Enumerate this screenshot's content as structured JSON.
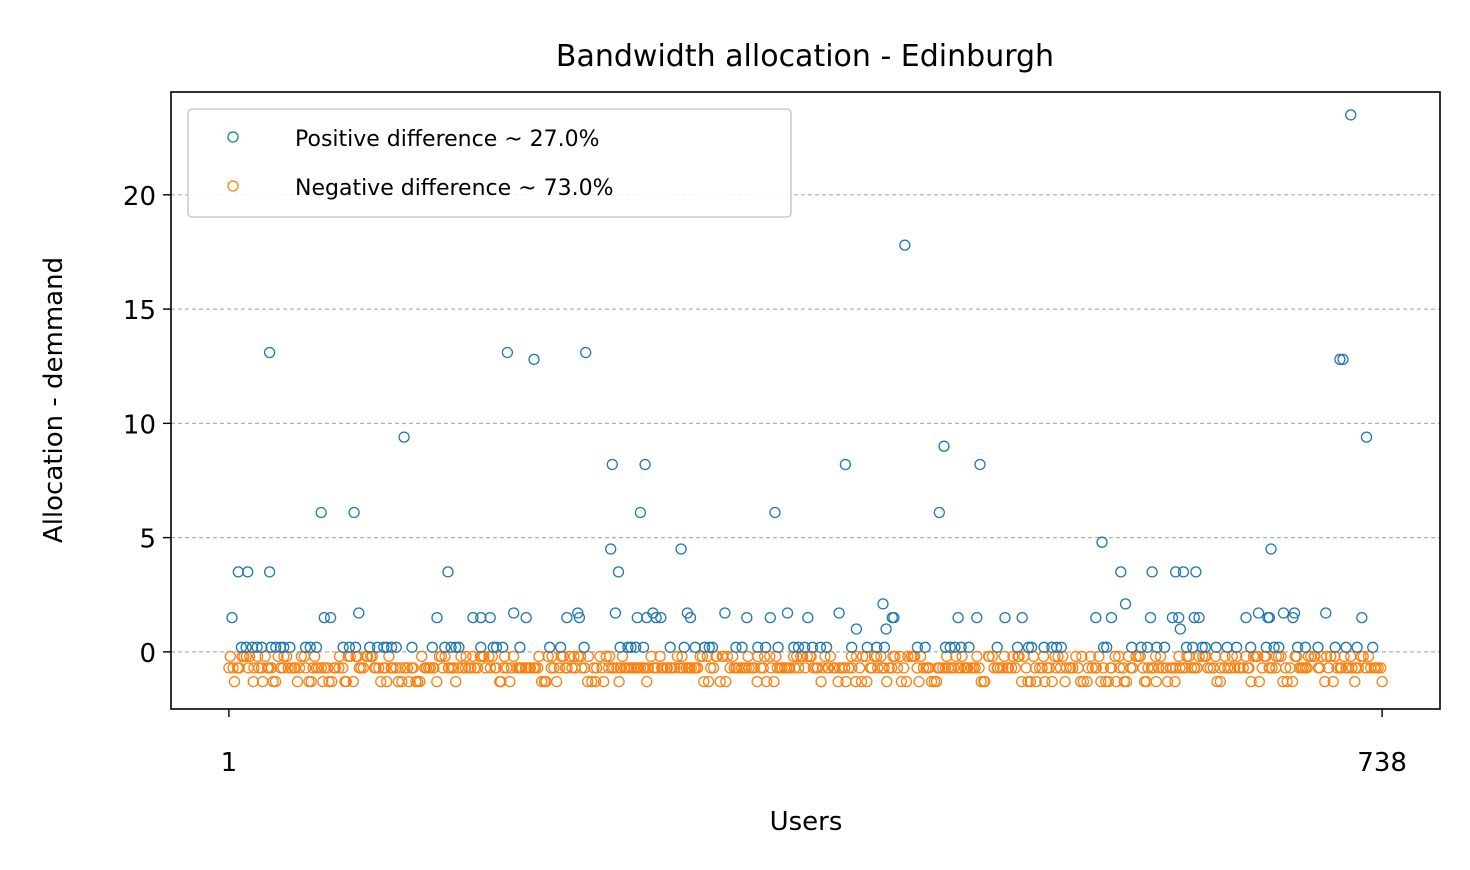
{
  "chart_data": {
    "type": "scatter",
    "title": "Bandwidth allocation - Edinburgh",
    "xlabel": "Users",
    "ylabel": "Allocation - demmand",
    "xlim": [
      -36,
      775
    ],
    "ylim": [
      -2.5,
      24.5
    ],
    "x_ticks": [
      1,
      738
    ],
    "x_tick_labels": [
      "1",
      "738"
    ],
    "y_ticks": [
      0,
      5,
      10,
      15,
      20
    ],
    "y_tick_labels": [
      "0",
      "5",
      "10",
      "15",
      "20"
    ],
    "grid": "y-dashed",
    "legend_position": "top-left",
    "series": [
      {
        "name": "Positive difference ~ 27.0%",
        "color": "#1f77b4",
        "marker": "open-circle",
        "points": [
          [
            3,
            1.5
          ],
          [
            7,
            3.5
          ],
          [
            9,
            0.2
          ],
          [
            12,
            0.2
          ],
          [
            13,
            3.5
          ],
          [
            16,
            0.2
          ],
          [
            19,
            0.2
          ],
          [
            22,
            0.2
          ],
          [
            27,
            13.1
          ],
          [
            27,
            3.5
          ],
          [
            28,
            0.2
          ],
          [
            31,
            0.2
          ],
          [
            34,
            0.2
          ],
          [
            36,
            0.2
          ],
          [
            40,
            0.2
          ],
          [
            50,
            0.2
          ],
          [
            53,
            0.2
          ],
          [
            57,
            0.2
          ],
          [
            60,
            6.1
          ],
          [
            62,
            1.5
          ],
          [
            66,
            1.5
          ],
          [
            74,
            0.2
          ],
          [
            78,
            0.2
          ],
          [
            81,
            6.1
          ],
          [
            82,
            0.2
          ],
          [
            84,
            1.7
          ],
          [
            91,
            0.2
          ],
          [
            96,
            0.2
          ],
          [
            100,
            0.2
          ],
          [
            102,
            0.2
          ],
          [
            105,
            0.2
          ],
          [
            108,
            0.2
          ],
          [
            113,
            9.4
          ],
          [
            118,
            0.2
          ],
          [
            131,
            0.2
          ],
          [
            134,
            1.5
          ],
          [
            139,
            0.2
          ],
          [
            141,
            3.5
          ],
          [
            143,
            0.2
          ],
          [
            146,
            0.2
          ],
          [
            148,
            0.2
          ],
          [
            157,
            1.5
          ],
          [
            162,
            1.5
          ],
          [
            162,
            0.2
          ],
          [
            168,
            1.5
          ],
          [
            170,
            0.2
          ],
          [
            172,
            0.2
          ],
          [
            176,
            0.2
          ],
          [
            179,
            13.1
          ],
          [
            183,
            1.7
          ],
          [
            187,
            0.2
          ],
          [
            191,
            1.5
          ],
          [
            196,
            12.8
          ],
          [
            206,
            0.2
          ],
          [
            213,
            0.2
          ],
          [
            217,
            1.5
          ],
          [
            224,
            1.7
          ],
          [
            225,
            1.5
          ],
          [
            228,
            0.2
          ],
          [
            229,
            13.1
          ],
          [
            246,
            8.2
          ],
          [
            245,
            4.5
          ],
          [
            248,
            1.7
          ],
          [
            250,
            3.5
          ],
          [
            251,
            0.2
          ],
          [
            256,
            0.2
          ],
          [
            258,
            0.2
          ],
          [
            261,
            0.2
          ],
          [
            262,
            1.5
          ],
          [
            264,
            6.1
          ],
          [
            266,
            0.2
          ],
          [
            267,
            8.2
          ],
          [
            268,
            1.5
          ],
          [
            272,
            1.7
          ],
          [
            274,
            1.5
          ],
          [
            277,
            1.5
          ],
          [
            283,
            0.2
          ],
          [
            290,
            4.5
          ],
          [
            292,
            0.2
          ],
          [
            294,
            1.7
          ],
          [
            296,
            1.5
          ],
          [
            299,
            0.2
          ],
          [
            305,
            0.2
          ],
          [
            308,
            0.2
          ],
          [
            310,
            0.2
          ],
          [
            318,
            1.7
          ],
          [
            325,
            0.2
          ],
          [
            329,
            0.2
          ],
          [
            332,
            1.5
          ],
          [
            339,
            0.2
          ],
          [
            344,
            0.2
          ],
          [
            347,
            1.5
          ],
          [
            350,
            6.1
          ],
          [
            352,
            0.2
          ],
          [
            358,
            1.7
          ],
          [
            362,
            0.2
          ],
          [
            365,
            0.2
          ],
          [
            369,
            0.2
          ],
          [
            371,
            1.5
          ],
          [
            374,
            0.2
          ],
          [
            379,
            0.2
          ],
          [
            383,
            0.2
          ],
          [
            391,
            1.7
          ],
          [
            395,
            8.2
          ],
          [
            399,
            0.2
          ],
          [
            402,
            1.0
          ],
          [
            409,
            0.2
          ],
          [
            415,
            0.2
          ],
          [
            419,
            2.1
          ],
          [
            420,
            0.2
          ],
          [
            421,
            1.0
          ],
          [
            425,
            1.5
          ],
          [
            426,
            1.5
          ],
          [
            433,
            17.8
          ],
          [
            441,
            0.2
          ],
          [
            446,
            0.2
          ],
          [
            455,
            6.1
          ],
          [
            458,
            9.0
          ],
          [
            459,
            0.2
          ],
          [
            462,
            0.2
          ],
          [
            465,
            0.2
          ],
          [
            467,
            1.5
          ],
          [
            469,
            0.2
          ],
          [
            474,
            0.2
          ],
          [
            479,
            1.5
          ],
          [
            481,
            8.2
          ],
          [
            492,
            0.2
          ],
          [
            497,
            1.5
          ],
          [
            505,
            0.2
          ],
          [
            508,
            1.5
          ],
          [
            512,
            0.2
          ],
          [
            514,
            0.2
          ],
          [
            522,
            0.2
          ],
          [
            527,
            0.2
          ],
          [
            530,
            0.2
          ],
          [
            533,
            0.2
          ],
          [
            555,
            1.5
          ],
          [
            559,
            4.8
          ],
          [
            560,
            0.2
          ],
          [
            562,
            0.2
          ],
          [
            565,
            1.5
          ],
          [
            571,
            3.5
          ],
          [
            574,
            2.1
          ],
          [
            578,
            0.2
          ],
          [
            584,
            0.2
          ],
          [
            588,
            0.2
          ],
          [
            590,
            1.5
          ],
          [
            591,
            3.5
          ],
          [
            594,
            0.2
          ],
          [
            599,
            0.2
          ],
          [
            604,
            1.5
          ],
          [
            606,
            3.5
          ],
          [
            608,
            1.5
          ],
          [
            609,
            1.0
          ],
          [
            611,
            3.5
          ],
          [
            613,
            0.2
          ],
          [
            617,
            0.2
          ],
          [
            618,
            1.5
          ],
          [
            619,
            3.5
          ],
          [
            621,
            1.5
          ],
          [
            623,
            0.2
          ],
          [
            625,
            0.2
          ],
          [
            632,
            0.2
          ],
          [
            639,
            0.2
          ],
          [
            645,
            0.2
          ],
          [
            651,
            1.5
          ],
          [
            654,
            0.2
          ],
          [
            659,
            1.7
          ],
          [
            664,
            0.2
          ],
          [
            665,
            1.5
          ],
          [
            666,
            1.5
          ],
          [
            667,
            4.5
          ],
          [
            669,
            0.2
          ],
          [
            672,
            0.2
          ],
          [
            675,
            1.7
          ],
          [
            681,
            1.5
          ],
          [
            682,
            1.7
          ],
          [
            684,
            0.2
          ],
          [
            689,
            0.2
          ],
          [
            697,
            0.2
          ],
          [
            702,
            1.7
          ],
          [
            708,
            0.2
          ],
          [
            711,
            12.8
          ],
          [
            713,
            12.8
          ],
          [
            715,
            0.2
          ],
          [
            718,
            23.5
          ],
          [
            722,
            0.2
          ],
          [
            725,
            1.5
          ],
          [
            728,
            9.4
          ],
          [
            732,
            0.2
          ]
        ]
      },
      {
        "name": "Negative difference ~ 73.0%",
        "color": "#ff7f0e",
        "marker": "open-circle",
        "values_bands": [
          -0.2,
          -0.7,
          -1.3
        ],
        "points_generated": "dense band of 539 points between x=1 and x=738 at values -0.2, -0.7 and -1.3"
      }
    ]
  }
}
